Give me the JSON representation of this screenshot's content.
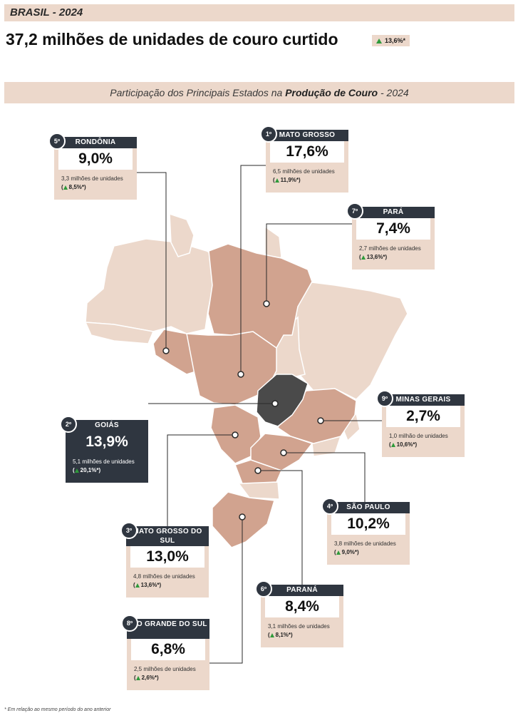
{
  "header": {
    "tag": "BRASIL - 2024",
    "headline": "37,2 milhões de unidades de couro curtido",
    "growth": "13,6%*"
  },
  "subtitle": {
    "prefix": "Participação dos Principais Estados na ",
    "bold": "Produção de Couro",
    "suffix": " - 2024"
  },
  "states": [
    {
      "rank": "1º",
      "name": "MATO GROSSO",
      "share": "17,6%",
      "units": "6,5 milhões de unidades",
      "change": "11,9%*"
    },
    {
      "rank": "2º",
      "name": "GOIÁS",
      "share": "13,9%",
      "units": "5,1 milhões de unidades",
      "change": "20,1%*"
    },
    {
      "rank": "3º",
      "name": "MATO GROSSO DO SUL",
      "share": "13,0%",
      "units": "4,8 milhões de unidades",
      "change": "13,6%*"
    },
    {
      "rank": "4º",
      "name": "SÃO PAULO",
      "share": "10,2%",
      "units": "3,8 milhões de unidades",
      "change": "9,0%*"
    },
    {
      "rank": "5º",
      "name": "RONDÔNIA",
      "share": "9,0%",
      "units": "3,3 milhões de unidades",
      "change": "8,5%*"
    },
    {
      "rank": "6º",
      "name": "PARANÁ",
      "share": "8,4%",
      "units": "3,1 milhões de unidades",
      "change": "8,1%*"
    },
    {
      "rank": "7º",
      "name": "PARÁ",
      "share": "7,4%",
      "units": "2,7 milhões de unidades",
      "change": "13,6%*"
    },
    {
      "rank": "8º",
      "name": "RIO GRANDE DO SUL",
      "share": "6,8%",
      "units": "2,5 milhões de unidades",
      "change": "2,6%*"
    },
    {
      "rank": "9º",
      "name": "MINAS GERAIS",
      "share": "2,7%",
      "units": "1,0 milhão de unidades",
      "change": "10,6%*"
    }
  ],
  "colors": {
    "highlight": "#d1a38f",
    "other": "#ecd8cb",
    "goias": "#4a4a4a",
    "card": "#ecd8cb",
    "card_header": "#2f3640",
    "arrow_up": "#2e9a3a"
  },
  "footnote": "* Em relação ao mesmo período do ano anterior"
}
